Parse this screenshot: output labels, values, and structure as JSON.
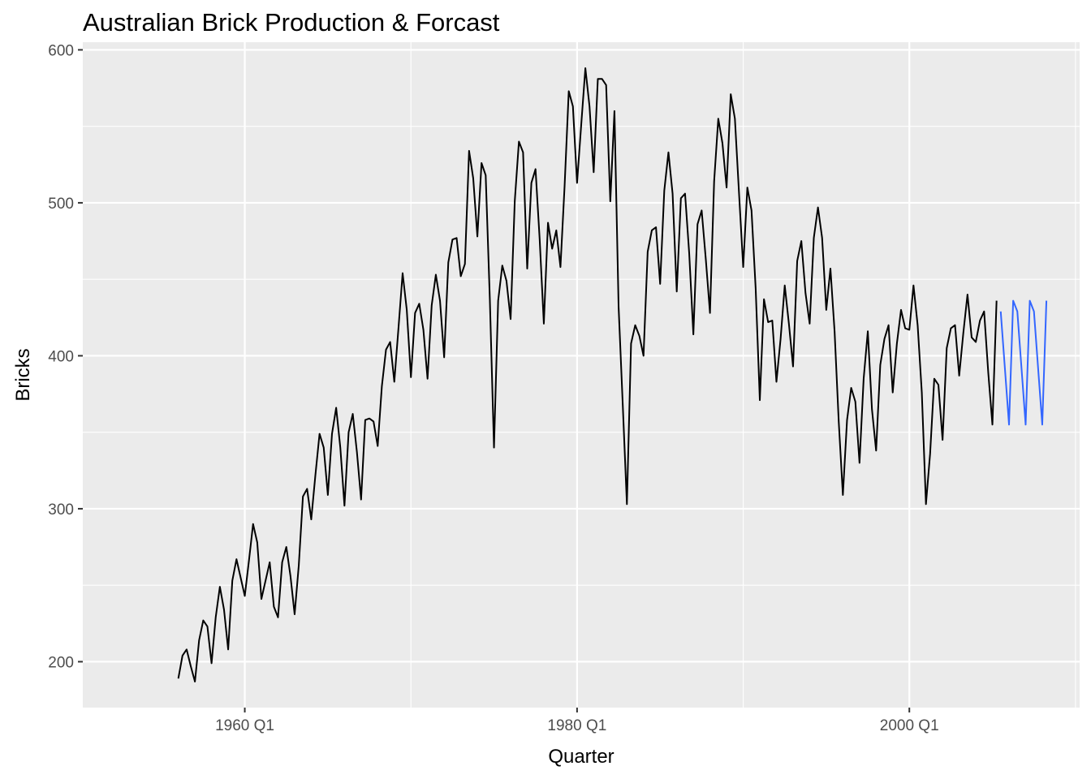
{
  "title": "Australian Brick Production & Forcast",
  "chart_data": {
    "type": "line",
    "title": "Australian Brick Production & Forcast",
    "xlabel": "Quarter",
    "ylabel": "Bricks",
    "x_unit": "quarter",
    "xlim": [
      "1950 Q2",
      "2010 Q2"
    ],
    "ylim": [
      170,
      605
    ],
    "x_ticks": [
      "1960 Q1",
      "1980 Q1",
      "2000 Q1"
    ],
    "y_ticks": [
      200,
      300,
      400,
      500,
      600
    ],
    "grid": true,
    "background": "#ebebeb",
    "series": [
      {
        "role": "observed",
        "color": "#000000",
        "start": "1956 Q1",
        "values": [
          189,
          204,
          208,
          197,
          187,
          214,
          227,
          223,
          199,
          229,
          249,
          234,
          208,
          253,
          267,
          255,
          243,
          266,
          290,
          278,
          241,
          253,
          265,
          236,
          229,
          265,
          275,
          256,
          231,
          263,
          308,
          313,
          293,
          322,
          349,
          340,
          309,
          349,
          366,
          340,
          302,
          350,
          362,
          337,
          306,
          358,
          359,
          357,
          341,
          380,
          404,
          409,
          383,
          418,
          454,
          430,
          386,
          428,
          434,
          417,
          385,
          433,
          453,
          436,
          399,
          461,
          476,
          477,
          452,
          460,
          534,
          516,
          478,
          526,
          518,
          437,
          340,
          436,
          459,
          449,
          424,
          501,
          540,
          533,
          457,
          513,
          522,
          476,
          421,
          487,
          470,
          482,
          458,
          511,
          573,
          563,
          513,
          551,
          588,
          563,
          520,
          581,
          581,
          577,
          501,
          560,
          432,
          368,
          303,
          408,
          420,
          413,
          400,
          468,
          482,
          484,
          447,
          508,
          533,
          506,
          442,
          503,
          506,
          467,
          414,
          486,
          495,
          463,
          428,
          514,
          555,
          539,
          510,
          571,
          555,
          506,
          458,
          510,
          495,
          444,
          371,
          437,
          422,
          423,
          383,
          411,
          446,
          421,
          393,
          462,
          475,
          441,
          421,
          477,
          497,
          477,
          430,
          457,
          416,
          357,
          309,
          358,
          379,
          370,
          330,
          385,
          416,
          365,
          338,
          394,
          411,
          420,
          376,
          408,
          430,
          418,
          417,
          446,
          420,
          376,
          303,
          336,
          385,
          381,
          345,
          405,
          418,
          420,
          387,
          415,
          440,
          412,
          409,
          423,
          429,
          389,
          355,
          436
        ]
      },
      {
        "role": "forecast",
        "color": "#3366ff",
        "start": "2005 Q3",
        "values": [
          429,
          392,
          355,
          436,
          429,
          392,
          355,
          436,
          429,
          392,
          355,
          436
        ]
      }
    ]
  }
}
